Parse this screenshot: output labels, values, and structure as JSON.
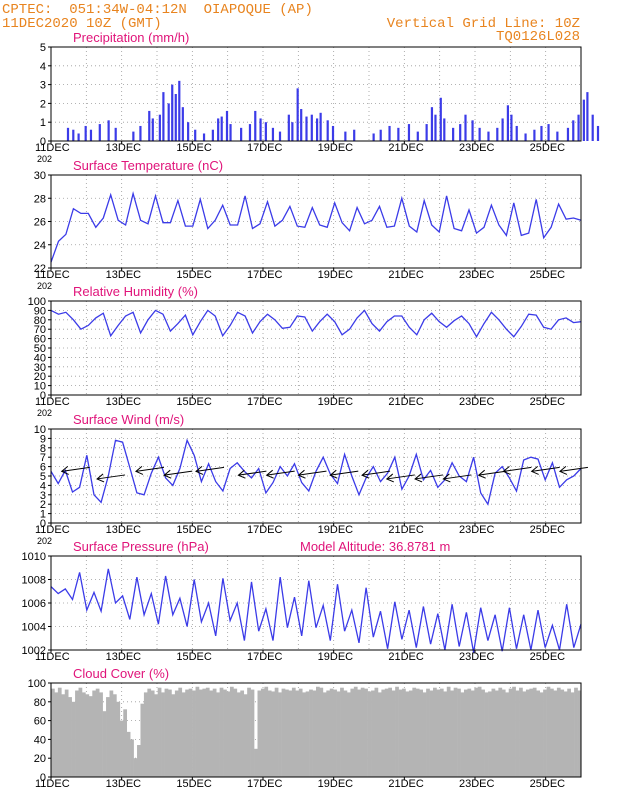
{
  "header": {
    "line1_left": "CPTEC:  051:34W-04:12N  OIAPOQUE (AP)",
    "line2_left": "11DEC2020 10Z (GMT)",
    "line1_right": "Vertical Grid Line: 10Z",
    "line2_right": "TQ0126L028"
  },
  "colors": {
    "header": "#e8841f",
    "title": "#e0147a",
    "series": "#3b3be8",
    "cloud": "#b4b4b4",
    "grid": "#9a9a9a"
  },
  "x_axis": {
    "start": "11DEC2020 10Z",
    "end": "26DEC2020 10Z",
    "tick_labels": [
      "11DEC",
      "13DEC",
      "15DEC",
      "17DEC",
      "19DEC",
      "21DEC",
      "23DEC",
      "25DEC"
    ],
    "year_fragment": "202"
  },
  "chart_data": [
    {
      "id": "precipitation",
      "type": "bar",
      "title": "Precipitation (mm/h)",
      "ylim": [
        0,
        5
      ],
      "yticks": [
        0,
        1,
        2,
        3,
        4,
        5
      ],
      "grid": true,
      "x_unit": "day offset from 11DEC2020 00Z",
      "values": [
        [
          0.45,
          0.7
        ],
        [
          0.6,
          0.6
        ],
        [
          0.75,
          0.4
        ],
        [
          0.95,
          0.8
        ],
        [
          1.1,
          0.6
        ],
        [
          1.35,
          0.9
        ],
        [
          1.6,
          1.1
        ],
        [
          1.8,
          0.7
        ],
        [
          2.3,
          0.5
        ],
        [
          2.5,
          0.8
        ],
        [
          2.75,
          1.6
        ],
        [
          2.85,
          1.2
        ],
        [
          3.05,
          1.4
        ],
        [
          3.15,
          2.6
        ],
        [
          3.3,
          2.0
        ],
        [
          3.4,
          3.0
        ],
        [
          3.5,
          2.5
        ],
        [
          3.6,
          3.2
        ],
        [
          3.7,
          1.8
        ],
        [
          3.85,
          1.0
        ],
        [
          4.05,
          0.6
        ],
        [
          4.3,
          0.4
        ],
        [
          4.55,
          0.6
        ],
        [
          4.7,
          1.2
        ],
        [
          4.8,
          1.3
        ],
        [
          4.95,
          1.6
        ],
        [
          5.05,
          0.9
        ],
        [
          5.35,
          0.7
        ],
        [
          5.6,
          0.9
        ],
        [
          5.75,
          1.6
        ],
        [
          5.9,
          1.2
        ],
        [
          6.05,
          1.0
        ],
        [
          6.25,
          0.7
        ],
        [
          6.45,
          0.5
        ],
        [
          6.7,
          1.4
        ],
        [
          6.8,
          1.0
        ],
        [
          6.95,
          2.8
        ],
        [
          7.05,
          1.7
        ],
        [
          7.2,
          1.3
        ],
        [
          7.35,
          1.4
        ],
        [
          7.5,
          1.2
        ],
        [
          7.6,
          1.5
        ],
        [
          7.8,
          1.1
        ],
        [
          7.95,
          0.8
        ],
        [
          8.3,
          0.5
        ],
        [
          8.55,
          0.6
        ],
        [
          9.1,
          0.4
        ],
        [
          9.3,
          0.6
        ],
        [
          9.55,
          0.8
        ],
        [
          9.8,
          0.7
        ],
        [
          10.1,
          0.9
        ],
        [
          10.35,
          0.5
        ],
        [
          10.6,
          0.9
        ],
        [
          10.75,
          1.8
        ],
        [
          10.85,
          1.4
        ],
        [
          11.0,
          2.3
        ],
        [
          11.1,
          1.2
        ],
        [
          11.35,
          0.7
        ],
        [
          11.55,
          0.9
        ],
        [
          11.7,
          1.4
        ],
        [
          11.9,
          1.1
        ],
        [
          12.1,
          0.7
        ],
        [
          12.35,
          0.5
        ],
        [
          12.6,
          0.7
        ],
        [
          12.75,
          1.2
        ],
        [
          12.9,
          1.9
        ],
        [
          13.0,
          1.4
        ],
        [
          13.15,
          0.8
        ],
        [
          13.4,
          0.4
        ],
        [
          13.65,
          0.6
        ],
        [
          13.85,
          0.8
        ],
        [
          14.05,
          0.9
        ],
        [
          14.3,
          0.5
        ],
        [
          14.6,
          0.7
        ],
        [
          14.75,
          1.1
        ],
        [
          14.9,
          1.4
        ],
        [
          15.05,
          2.2
        ],
        [
          15.15,
          2.6
        ],
        [
          15.3,
          1.4
        ],
        [
          15.45,
          0.8
        ]
      ]
    },
    {
      "id": "temperature",
      "type": "line",
      "title": "Surface Temperature (nC)",
      "ylim": [
        22,
        30
      ],
      "yticks": [
        22,
        24,
        26,
        28,
        30
      ],
      "grid": true,
      "series": [
        {
          "values": [
            22.5,
            24.3,
            24.9,
            27.1,
            26.7,
            26.7,
            25.5,
            26.3,
            28.3,
            26.1,
            25.7,
            28.4,
            26.1,
            25.8,
            28.2,
            25.9,
            25.9,
            27.8,
            25.6,
            25.6,
            27.9,
            25.4,
            26.1,
            27.4,
            25.7,
            25.7,
            28.2,
            25.4,
            25.8,
            27.7,
            25.6,
            26.1,
            27.3,
            25.6,
            25.5,
            27.2,
            25.7,
            25.5,
            27.6,
            25.9,
            25.2,
            27.2,
            25.8,
            26.1,
            27.3,
            25.5,
            25.6,
            28.0,
            25.6,
            25.1,
            27.8,
            25.7,
            25.1,
            28.2,
            25.4,
            25.2,
            27.0,
            25.0,
            25.5,
            27.4,
            25.7,
            24.8,
            27.6,
            24.8,
            25.0,
            27.9,
            24.6,
            25.5,
            27.5,
            26.2,
            26.3,
            26.1
          ]
        }
      ]
    },
    {
      "id": "humidity",
      "type": "line",
      "title": "Relative Humidity (%)",
      "ylim": [
        0,
        100
      ],
      "yticks": [
        0,
        10,
        20,
        30,
        40,
        50,
        60,
        70,
        80,
        90,
        100
      ],
      "grid": true,
      "series": [
        {
          "values": [
            90,
            86,
            88,
            80,
            70,
            74,
            82,
            87,
            63,
            74,
            84,
            88,
            66,
            80,
            90,
            86,
            68,
            76,
            85,
            64,
            78,
            90,
            84,
            63,
            74,
            88,
            84,
            66,
            78,
            86,
            80,
            71,
            72,
            84,
            83,
            68,
            78,
            86,
            78,
            64,
            70,
            82,
            90,
            76,
            68,
            78,
            84,
            84,
            72,
            64,
            80,
            87,
            78,
            72,
            79,
            84,
            76,
            62,
            76,
            88,
            80,
            70,
            62,
            73,
            86,
            85,
            72,
            70,
            80,
            82,
            77,
            78
          ]
        }
      ]
    },
    {
      "id": "wind",
      "type": "line",
      "title": "Surface Wind (m/s)",
      "ylim": [
        0,
        10
      ],
      "yticks": [
        0,
        1,
        2,
        3,
        4,
        5,
        6,
        7,
        8,
        9,
        10
      ],
      "grid": true,
      "series": [
        {
          "values": [
            5.5,
            4.2,
            5.6,
            3.3,
            3.8,
            7.2,
            3.0,
            2.2,
            5.0,
            8.8,
            8.6,
            5.9,
            3.2,
            3.0,
            5.3,
            7.0,
            4.8,
            4.0,
            5.8,
            8.8,
            7.2,
            4.4,
            6.3,
            4.4,
            3.4,
            5.8,
            6.4,
            5.5,
            4.8,
            5.8,
            3.2,
            4.3,
            6.0,
            5.0,
            6.3,
            4.3,
            3.4,
            5.5,
            7.0,
            5.2,
            4.2,
            7.3,
            5.0,
            3.0,
            4.8,
            6.0,
            4.4,
            5.3,
            7.0,
            3.6,
            5.0,
            7.3,
            4.6,
            5.6,
            3.8,
            4.6,
            6.4,
            5.0,
            4.4,
            7.0,
            3.2,
            2.0,
            5.3,
            6.0,
            4.8,
            3.4,
            6.7,
            7.0,
            6.8,
            4.6,
            6.4,
            3.8,
            4.6,
            5.0,
            5.8
          ]
        }
      ],
      "arrow_days": [
        0.7,
        1.7,
        2.8,
        3.6,
        4.5,
        5.7,
        6.5,
        7.4,
        8.3,
        9.2,
        9.9,
        10.7,
        11.5,
        12.5,
        13.2,
        14.0,
        14.8
      ]
    },
    {
      "id": "pressure",
      "type": "line",
      "title": "Surface Pressure (hPa)",
      "annotation": "Model Altitude: 36.8781 m",
      "ylim": [
        1002,
        1010
      ],
      "yticks": [
        1002,
        1004,
        1006,
        1008,
        1010
      ],
      "grid": true,
      "series": [
        {
          "values": [
            1007.4,
            1006.8,
            1007.2,
            1006.3,
            1008.6,
            1005.4,
            1006.9,
            1005.3,
            1008.9,
            1006.0,
            1006.6,
            1004.6,
            1008.2,
            1005.0,
            1006.8,
            1004.2,
            1008.3,
            1005.0,
            1006.4,
            1004.0,
            1008.0,
            1004.4,
            1006.0,
            1003.2,
            1008.1,
            1004.5,
            1006.0,
            1002.8,
            1007.8,
            1003.6,
            1005.5,
            1002.8,
            1008.2,
            1003.9,
            1006.5,
            1003.2,
            1007.9,
            1003.9,
            1005.8,
            1002.8,
            1007.6,
            1003.6,
            1005.4,
            1002.6,
            1007.3,
            1003.1,
            1005.3,
            1002.1,
            1006.1,
            1002.9,
            1005.4,
            1002.2,
            1005.7,
            1002.5,
            1005.1,
            1002.0,
            1005.9,
            1002.3,
            1005.2,
            1001.8,
            1005.6,
            1002.8,
            1005.0,
            1001.9,
            1005.6,
            1002.1,
            1005.0,
            1002.0,
            1005.4,
            1002.2,
            1004.1,
            1002.0,
            1005.9,
            1002.2,
            1004.2
          ]
        }
      ]
    },
    {
      "id": "cloud",
      "type": "bar",
      "title": "Cloud Cover (%)",
      "ylim": [
        0,
        100
      ],
      "yticks": [
        0,
        20,
        40,
        60,
        80,
        100
      ],
      "grid": true,
      "values": [
        94,
        90,
        95,
        88,
        93,
        85,
        80,
        92,
        95,
        90,
        88,
        86,
        92,
        94,
        90,
        70,
        85,
        92,
        88,
        80,
        60,
        72,
        48,
        40,
        20,
        34,
        78,
        90,
        94,
        92,
        88,
        95,
        90,
        94,
        93,
        88,
        92,
        95,
        90,
        93,
        94,
        92,
        96,
        93,
        94,
        95,
        92,
        94,
        90,
        95,
        93,
        91,
        96,
        94,
        90,
        92,
        88,
        95,
        93,
        30,
        92,
        94,
        96,
        92,
        91,
        95,
        90,
        94,
        93,
        92,
        95,
        92,
        94,
        90,
        91,
        93,
        92,
        96,
        95,
        90,
        92,
        94,
        93,
        91,
        95,
        92,
        90,
        94,
        96,
        93,
        95,
        94,
        91,
        92,
        95,
        90,
        93,
        94,
        95,
        92,
        96,
        93,
        94,
        91,
        92,
        95,
        94,
        93,
        90,
        94,
        92,
        95,
        93,
        94,
        91,
        96,
        92,
        95,
        94,
        90,
        93,
        94,
        92,
        95,
        96,
        93,
        90,
        91,
        94,
        92,
        95,
        93,
        90,
        94,
        96,
        92,
        95,
        91,
        93,
        94,
        95,
        92,
        90,
        93,
        96,
        94,
        92,
        95,
        93,
        91,
        94,
        90,
        95,
        92
      ]
    }
  ]
}
